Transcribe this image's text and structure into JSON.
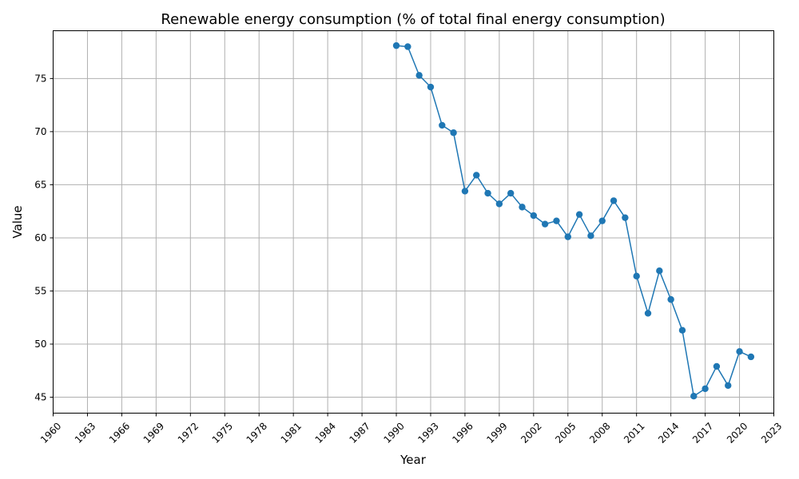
{
  "chart_data": {
    "type": "line",
    "title": "Renewable energy consumption (% of total final energy consumption)",
    "xlabel": "Year",
    "ylabel": "Value",
    "xlim": [
      1960,
      2023
    ],
    "ylim": [
      43.5,
      79.5
    ],
    "xticks": [
      1960,
      1963,
      1966,
      1969,
      1972,
      1975,
      1978,
      1981,
      1984,
      1987,
      1990,
      1993,
      1996,
      1999,
      2002,
      2005,
      2008,
      2011,
      2014,
      2017,
      2020,
      2023
    ],
    "yticks": [
      45,
      50,
      55,
      60,
      65,
      70,
      75
    ],
    "grid": true,
    "line_color": "#1f77b4",
    "series": [
      {
        "x": [
          1990,
          1991,
          1992,
          1993,
          1994,
          1995,
          1996,
          1997,
          1998,
          1999,
          2000,
          2001,
          2002,
          2003,
          2004,
          2005,
          2006,
          2007,
          2008,
          2009,
          2010,
          2011,
          2012,
          2013,
          2014,
          2015,
          2016,
          2017,
          2018,
          2019,
          2020,
          2021
        ],
        "values": [
          78.1,
          78.0,
          75.3,
          74.2,
          70.6,
          69.9,
          64.4,
          65.9,
          64.2,
          63.2,
          64.2,
          62.9,
          62.1,
          61.3,
          61.6,
          60.1,
          62.2,
          60.2,
          61.6,
          63.5,
          61.9,
          56.4,
          52.9,
          56.9,
          54.2,
          51.3,
          45.1,
          45.8,
          47.9,
          46.1,
          49.3,
          48.8
        ]
      }
    ]
  }
}
